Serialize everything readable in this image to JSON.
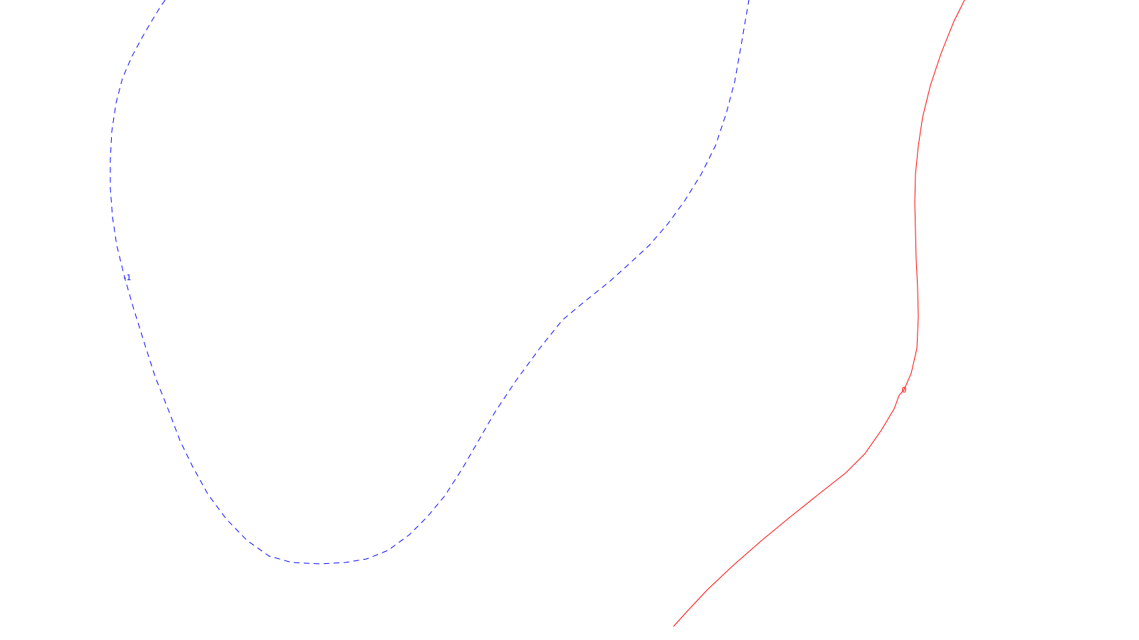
{
  "chart_data": {
    "type": "line",
    "grid": false,
    "contours": [
      {
        "level": -1,
        "label": "-1",
        "color": "#0000ff",
        "style": "dashed",
        "label_at_point": 12,
        "points": [
          [
            232,
            0
          ],
          [
            225,
            10
          ],
          [
            214,
            28
          ],
          [
            200,
            52
          ],
          [
            185,
            80
          ],
          [
            172,
            110
          ],
          [
            163,
            145
          ],
          [
            157,
            185
          ],
          [
            155,
            225
          ],
          [
            155,
            265
          ],
          [
            158,
            305
          ],
          [
            164,
            345
          ],
          [
            175,
            390
          ],
          [
            188,
            435
          ],
          [
            202,
            480
          ],
          [
            218,
            530
          ],
          [
            236,
            575
          ],
          [
            253,
            620
          ],
          [
            270,
            655
          ],
          [
            292,
            695
          ],
          [
            318,
            730
          ],
          [
            347,
            760
          ],
          [
            378,
            782
          ],
          [
            410,
            791
          ],
          [
            450,
            793
          ],
          [
            485,
            791
          ],
          [
            515,
            786
          ],
          [
            545,
            774
          ],
          [
            575,
            752
          ],
          [
            600,
            727
          ],
          [
            625,
            697
          ],
          [
            650,
            658
          ],
          [
            672,
            620
          ],
          [
            695,
            580
          ],
          [
            725,
            535
          ],
          [
            758,
            490
          ],
          [
            790,
            450
          ],
          [
            820,
            425
          ],
          [
            855,
            397
          ],
          [
            885,
            370
          ],
          [
            912,
            345
          ],
          [
            938,
            315
          ],
          [
            962,
            282
          ],
          [
            985,
            245
          ],
          [
            1005,
            205
          ],
          [
            1020,
            160
          ],
          [
            1032,
            115
          ],
          [
            1040,
            70
          ],
          [
            1046,
            35
          ],
          [
            1052,
            0
          ]
        ]
      },
      {
        "level": 0,
        "label": "0",
        "color": "#ff0000",
        "style": "solid",
        "label_at_point": 14,
        "points": [
          [
            1355,
            0
          ],
          [
            1340,
            30
          ],
          [
            1322,
            75
          ],
          [
            1307,
            120
          ],
          [
            1296,
            165
          ],
          [
            1290,
            205
          ],
          [
            1286,
            245
          ],
          [
            1285,
            285
          ],
          [
            1286,
            325
          ],
          [
            1287,
            365
          ],
          [
            1289,
            405
          ],
          [
            1290,
            445
          ],
          [
            1288,
            490
          ],
          [
            1280,
            525
          ],
          [
            1270,
            548
          ],
          [
            1263,
            556
          ],
          [
            1256,
            575
          ],
          [
            1238,
            605
          ],
          [
            1215,
            638
          ],
          [
            1188,
            665
          ],
          [
            1150,
            695
          ],
          [
            1110,
            727
          ],
          [
            1070,
            760
          ],
          [
            1030,
            795
          ],
          [
            993,
            830
          ],
          [
            965,
            860
          ],
          [
            946,
            881
          ]
        ]
      }
    ]
  }
}
